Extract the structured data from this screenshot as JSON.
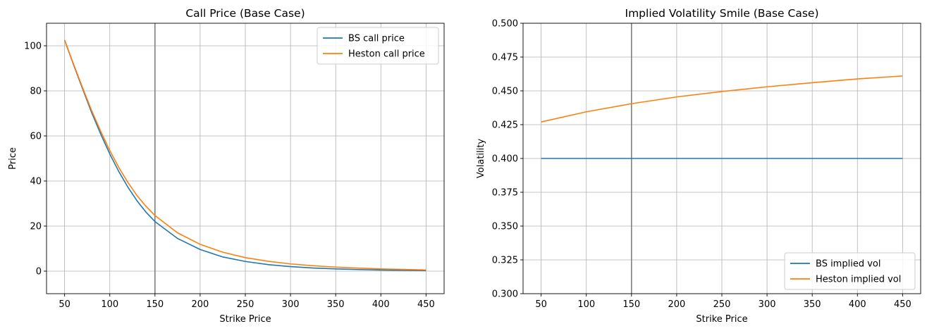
{
  "chart_data": [
    {
      "type": "line",
      "title": "Call Price (Base Case)",
      "xlabel": "Strike Price",
      "ylabel": "Price",
      "xlim": [
        30,
        470
      ],
      "ylim": [
        -10,
        110
      ],
      "xticks": [
        50,
        100,
        150,
        200,
        250,
        300,
        350,
        400,
        450
      ],
      "yticks": [
        0,
        20,
        40,
        60,
        80,
        100
      ],
      "grid": true,
      "vline": 150,
      "legend_position": "top-right",
      "x": [
        50,
        60,
        70,
        80,
        90,
        100,
        110,
        120,
        130,
        140,
        150,
        175,
        200,
        225,
        250,
        275,
        300,
        325,
        350,
        375,
        400,
        425,
        450
      ],
      "series": [
        {
          "name": "BS call price",
          "color": "#1f77b4",
          "values": [
            102.5,
            91.5,
            80.8,
            70.3,
            60.8,
            52.0,
            44.2,
            37.3,
            31.3,
            26.2,
            22.0,
            14.5,
            9.6,
            6.3,
            4.3,
            2.9,
            2.0,
            1.4,
            1.0,
            0.7,
            0.5,
            0.35,
            0.25
          ]
        },
        {
          "name": "Heston call price",
          "color": "#ff7f0e",
          "values": [
            102.6,
            91.8,
            81.3,
            71.2,
            62.0,
            53.5,
            46.0,
            39.4,
            33.6,
            28.8,
            24.7,
            17.0,
            11.9,
            8.4,
            6.0,
            4.4,
            3.2,
            2.4,
            1.8,
            1.35,
            1.0,
            0.75,
            0.55
          ]
        }
      ]
    },
    {
      "type": "line",
      "title": "Implied Volatility Smile (Base Case)",
      "xlabel": "Strike Price",
      "ylabel": "Volatility",
      "xlim": [
        30,
        470
      ],
      "ylim": [
        0.3,
        0.5
      ],
      "xticks": [
        50,
        100,
        150,
        200,
        250,
        300,
        350,
        400,
        450
      ],
      "yticks": [
        0.3,
        0.325,
        0.35,
        0.375,
        0.4,
        0.425,
        0.45,
        0.475,
        0.5
      ],
      "ytick_labels": [
        "0.300",
        "0.325",
        "0.350",
        "0.375",
        "0.400",
        "0.425",
        "0.450",
        "0.475",
        "0.500"
      ],
      "grid": true,
      "vline": 150,
      "legend_position": "bottom-right",
      "x": [
        50,
        100,
        150,
        200,
        250,
        300,
        350,
        400,
        450
      ],
      "series": [
        {
          "name": "BS implied vol",
          "color": "#1f77b4",
          "values": [
            0.4,
            0.4,
            0.4,
            0.4,
            0.4,
            0.4,
            0.4,
            0.4,
            0.4
          ]
        },
        {
          "name": "Heston implied vol",
          "color": "#ff7f0e",
          "values": [
            0.427,
            0.4345,
            0.4405,
            0.4455,
            0.4495,
            0.453,
            0.456,
            0.4588,
            0.461
          ]
        }
      ]
    }
  ]
}
